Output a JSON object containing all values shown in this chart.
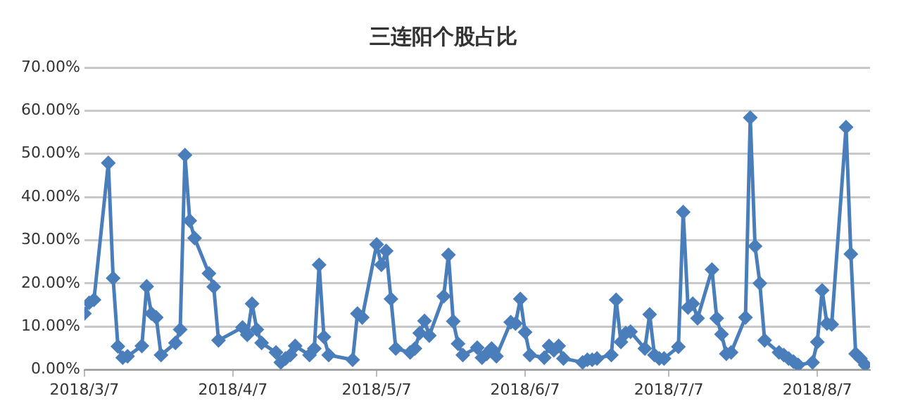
{
  "chart_data": {
    "type": "line",
    "title": "三连阳个股占比",
    "x": [
      "2018-03-07",
      "2018-03-08",
      "2018-03-09",
      "2018-03-12",
      "2018-03-13",
      "2018-03-14",
      "2018-03-15",
      "2018-03-16",
      "2018-03-19",
      "2018-03-20",
      "2018-03-21",
      "2018-03-22",
      "2018-03-23",
      "2018-03-26",
      "2018-03-27",
      "2018-03-28",
      "2018-03-29",
      "2018-03-30",
      "2018-04-02",
      "2018-04-03",
      "2018-04-04",
      "2018-04-09",
      "2018-04-10",
      "2018-04-11",
      "2018-04-12",
      "2018-04-13",
      "2018-04-16",
      "2018-04-17",
      "2018-04-18",
      "2018-04-19",
      "2018-04-20",
      "2018-04-23",
      "2018-04-24",
      "2018-04-25",
      "2018-04-26",
      "2018-04-27",
      "2018-05-02",
      "2018-05-03",
      "2018-05-04",
      "2018-05-07",
      "2018-05-08",
      "2018-05-09",
      "2018-05-10",
      "2018-05-11",
      "2018-05-14",
      "2018-05-15",
      "2018-05-16",
      "2018-05-17",
      "2018-05-18",
      "2018-05-21",
      "2018-05-22",
      "2018-05-23",
      "2018-05-24",
      "2018-05-25",
      "2018-05-28",
      "2018-05-29",
      "2018-05-30",
      "2018-05-31",
      "2018-06-01",
      "2018-06-04",
      "2018-06-05",
      "2018-06-06",
      "2018-06-07",
      "2018-06-08",
      "2018-06-11",
      "2018-06-12",
      "2018-06-13",
      "2018-06-14",
      "2018-06-15",
      "2018-06-19",
      "2018-06-20",
      "2018-06-21",
      "2018-06-22",
      "2018-06-25",
      "2018-06-26",
      "2018-06-27",
      "2018-06-28",
      "2018-06-29",
      "2018-07-02",
      "2018-07-03",
      "2018-07-04",
      "2018-07-05",
      "2018-07-06",
      "2018-07-09",
      "2018-07-10",
      "2018-07-11",
      "2018-07-12",
      "2018-07-13",
      "2018-07-16",
      "2018-07-17",
      "2018-07-18",
      "2018-07-19",
      "2018-07-20",
      "2018-07-23",
      "2018-07-24",
      "2018-07-25",
      "2018-07-26",
      "2018-07-27",
      "2018-07-30",
      "2018-07-31",
      "2018-08-01",
      "2018-08-02",
      "2018-08-03",
      "2018-08-06",
      "2018-08-07",
      "2018-08-08",
      "2018-08-09",
      "2018-08-10",
      "2018-08-13",
      "2018-08-14",
      "2018-08-15",
      "2018-08-16",
      "2018-08-17"
    ],
    "series": [
      {
        "color": "#4a7ebb",
        "values": [
          13.0,
          15.5,
          16.2,
          47.9,
          21.2,
          5.4,
          2.8,
          3.1,
          5.5,
          19.3,
          13.0,
          12.1,
          3.4,
          6.2,
          9.3,
          49.7,
          34.5,
          30.5,
          22.3,
          19.2,
          6.8,
          9.8,
          8.1,
          15.3,
          9.3,
          6.2,
          4.0,
          1.7,
          2.6,
          3.4,
          5.5,
          3.4,
          4.9,
          24.3,
          7.6,
          3.4,
          2.3,
          13.0,
          12.1,
          29.0,
          24.3,
          27.5,
          16.4,
          4.9,
          4.0,
          4.9,
          8.5,
          11.3,
          7.9,
          17.0,
          26.6,
          11.2,
          6.0,
          3.4,
          5.1,
          2.8,
          3.7,
          4.9,
          3.1,
          11.0,
          10.7,
          16.4,
          8.7,
          3.4,
          2.8,
          5.5,
          4.5,
          5.5,
          2.6,
          1.7,
          2.3,
          2.3,
          2.6,
          3.4,
          16.2,
          6.4,
          8.5,
          8.8,
          4.9,
          12.8,
          3.4,
          2.6,
          2.6,
          5.3,
          36.5,
          14.4,
          15.3,
          11.9,
          23.2,
          11.9,
          8.2,
          3.7,
          4.0,
          12.1,
          58.4,
          28.6,
          20.0,
          6.8,
          4.0,
          3.4,
          2.6,
          1.9,
          1.1,
          1.7,
          6.4,
          18.4,
          10.7,
          10.5,
          56.2,
          26.8,
          3.7,
          2.6,
          1.1
        ]
      }
    ],
    "xlim": [
      "2018-03-07",
      "2018-08-18"
    ],
    "xticks": [
      {
        "value": "2018-03-07",
        "label": "2018/3/7"
      },
      {
        "value": "2018-04-07",
        "label": "2018/4/7"
      },
      {
        "value": "2018-05-07",
        "label": "2018/5/7"
      },
      {
        "value": "2018-06-07",
        "label": "2018/6/7"
      },
      {
        "value": "2018-07-07",
        "label": "2018/7/7"
      },
      {
        "value": "2018-08-07",
        "label": "2018/8/7"
      }
    ],
    "ylim": [
      0,
      70
    ],
    "yticks": [
      {
        "value": 0,
        "label": "0.00%"
      },
      {
        "value": 10,
        "label": "10.00%"
      },
      {
        "value": 20,
        "label": "20.00%"
      },
      {
        "value": 30,
        "label": "30.00%"
      },
      {
        "value": 40,
        "label": "40.00%"
      },
      {
        "value": 50,
        "label": "50.00%"
      },
      {
        "value": 60,
        "label": "60.00%"
      },
      {
        "value": 70,
        "label": "70.00%"
      }
    ],
    "grid": "y",
    "legend": false,
    "marker": "diamond",
    "line_style": "solid"
  }
}
